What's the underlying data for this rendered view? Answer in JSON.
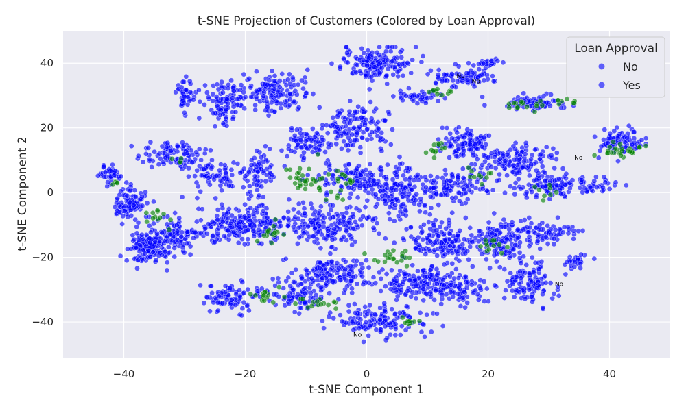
{
  "chart_data": {
    "type": "scatter",
    "title": "t-SNE Projection of Customers (Colored by Loan Approval)",
    "xlabel": "t-SNE Component 1",
    "ylabel": "t-SNE Component 2",
    "xlim": [
      -50,
      50
    ],
    "ylim": [
      -51,
      50
    ],
    "xticks": [
      -40,
      -20,
      0,
      20,
      40
    ],
    "yticks": [
      -40,
      -20,
      0,
      20,
      40
    ],
    "grid": true,
    "legend": {
      "title": "Loan Approval",
      "placement": "top-right",
      "entries": [
        {
          "label": "No",
          "color": "#0000ff"
        },
        {
          "label": "Yes",
          "color": "#0000ff"
        }
      ]
    },
    "colors": {
      "blue": "#0000ff",
      "green": "#008000",
      "background": "#eaeaf2",
      "grid": "#ffffff"
    },
    "clusters": [
      {
        "series": "blue",
        "center": [
          -42.5,
          5.5
        ],
        "spread": [
          1.8,
          2.2
        ],
        "n": 40
      },
      {
        "series": "blue",
        "center": [
          -39,
          -3
        ],
        "spread": [
          2.5,
          4.5
        ],
        "n": 90
      },
      {
        "series": "blue",
        "center": [
          -36,
          -17
        ],
        "spread": [
          3,
          4
        ],
        "n": 130
      },
      {
        "series": "blue",
        "center": [
          -32,
          -13
        ],
        "spread": [
          4,
          4
        ],
        "n": 110
      },
      {
        "series": "blue",
        "center": [
          -32,
          12
        ],
        "spread": [
          4,
          4
        ],
        "n": 90
      },
      {
        "series": "blue",
        "center": [
          -30,
          30
        ],
        "spread": [
          1.5,
          4
        ],
        "n": 40
      },
      {
        "series": "blue",
        "center": [
          -23,
          27
        ],
        "spread": [
          3,
          6
        ],
        "n": 100
      },
      {
        "series": "blue",
        "center": [
          -15,
          31
        ],
        "spread": [
          4,
          5
        ],
        "n": 130
      },
      {
        "series": "blue",
        "center": [
          -25,
          5
        ],
        "spread": [
          4,
          4
        ],
        "n": 70
      },
      {
        "series": "blue",
        "center": [
          -18,
          6
        ],
        "spread": [
          3,
          6
        ],
        "n": 70
      },
      {
        "series": "blue",
        "center": [
          -20,
          -10
        ],
        "spread": [
          6,
          5
        ],
        "n": 220
      },
      {
        "series": "blue",
        "center": [
          -22,
          -32
        ],
        "spread": [
          4,
          4
        ],
        "n": 80
      },
      {
        "series": "blue",
        "center": [
          -11,
          -32
        ],
        "spread": [
          4,
          4
        ],
        "n": 80
      },
      {
        "series": "blue",
        "center": [
          -10,
          15
        ],
        "spread": [
          3,
          4
        ],
        "n": 70
      },
      {
        "series": "blue",
        "center": [
          -2,
          20
        ],
        "spread": [
          5,
          6
        ],
        "n": 140
      },
      {
        "series": "blue",
        "center": [
          -2,
          4
        ],
        "spread": [
          5,
          4
        ],
        "n": 110
      },
      {
        "series": "blue",
        "center": [
          -6,
          -10
        ],
        "spread": [
          6,
          5
        ],
        "n": 180
      },
      {
        "series": "blue",
        "center": [
          -6,
          -25
        ],
        "spread": [
          6,
          4
        ],
        "n": 150
      },
      {
        "series": "blue",
        "center": [
          2,
          -40
        ],
        "spread": [
          7,
          4
        ],
        "n": 140
      },
      {
        "series": "blue",
        "center": [
          2,
          40
        ],
        "spread": [
          5,
          4
        ],
        "n": 160
      },
      {
        "series": "blue",
        "center": [
          9,
          30
        ],
        "spread": [
          3,
          2
        ],
        "n": 40
      },
      {
        "series": "blue",
        "center": [
          16,
          36
        ],
        "spread": [
          4,
          3
        ],
        "n": 80
      },
      {
        "series": "blue",
        "center": [
          20,
          40
        ],
        "spread": [
          1.5,
          1.2
        ],
        "n": 20
      },
      {
        "series": "blue",
        "center": [
          6,
          0
        ],
        "spread": [
          5,
          7
        ],
        "n": 160
      },
      {
        "series": "blue",
        "center": [
          12,
          -15
        ],
        "spread": [
          5,
          5
        ],
        "n": 140
      },
      {
        "series": "blue",
        "center": [
          8,
          -28
        ],
        "spread": [
          5,
          5
        ],
        "n": 120
      },
      {
        "series": "blue",
        "center": [
          17,
          15
        ],
        "spread": [
          4,
          4
        ],
        "n": 110
      },
      {
        "series": "blue",
        "center": [
          25,
          10
        ],
        "spread": [
          5,
          4
        ],
        "n": 120
      },
      {
        "series": "blue",
        "center": [
          15,
          2
        ],
        "spread": [
          5,
          4
        ],
        "n": 100
      },
      {
        "series": "blue",
        "center": [
          30,
          2
        ],
        "spread": [
          5,
          3
        ],
        "n": 100
      },
      {
        "series": "blue",
        "center": [
          22,
          -15
        ],
        "spread": [
          5,
          5
        ],
        "n": 150
      },
      {
        "series": "blue",
        "center": [
          15,
          -30
        ],
        "spread": [
          5,
          4
        ],
        "n": 100
      },
      {
        "series": "blue",
        "center": [
          27,
          -28
        ],
        "spread": [
          4,
          5
        ],
        "n": 110
      },
      {
        "series": "blue",
        "center": [
          30,
          -12
        ],
        "spread": [
          4,
          3
        ],
        "n": 60
      },
      {
        "series": "blue",
        "center": [
          27,
          28
        ],
        "spread": [
          4,
          2
        ],
        "n": 70
      },
      {
        "series": "blue",
        "center": [
          42,
          16
        ],
        "spread": [
          3,
          3
        ],
        "n": 80
      },
      {
        "series": "blue",
        "center": [
          38,
          2
        ],
        "spread": [
          3,
          2
        ],
        "n": 30
      },
      {
        "series": "blue",
        "center": [
          34,
          -21
        ],
        "spread": [
          2,
          2
        ],
        "n": 25
      },
      {
        "series": "green",
        "center": [
          -35,
          -7
        ],
        "spread": [
          2,
          2
        ],
        "n": 12
      },
      {
        "series": "green",
        "center": [
          -10,
          4
        ],
        "spread": [
          3,
          4
        ],
        "n": 30
      },
      {
        "series": "green",
        "center": [
          -4,
          4
        ],
        "spread": [
          3,
          2
        ],
        "n": 12
      },
      {
        "series": "green",
        "center": [
          -16,
          -12
        ],
        "spread": [
          2,
          3
        ],
        "n": 15
      },
      {
        "series": "green",
        "center": [
          -17,
          -32
        ],
        "spread": [
          2,
          3
        ],
        "n": 15
      },
      {
        "series": "green",
        "center": [
          -8,
          -34
        ],
        "spread": [
          3,
          1.5
        ],
        "n": 15
      },
      {
        "series": "green",
        "center": [
          4,
          -20
        ],
        "spread": [
          4,
          2
        ],
        "n": 20
      },
      {
        "series": "green",
        "center": [
          7,
          -40
        ],
        "spread": [
          2,
          2
        ],
        "n": 10
      },
      {
        "series": "green",
        "center": [
          12,
          14
        ],
        "spread": [
          2,
          2
        ],
        "n": 12
      },
      {
        "series": "green",
        "center": [
          19,
          5
        ],
        "spread": [
          2,
          3
        ],
        "n": 10
      },
      {
        "series": "green",
        "center": [
          20,
          -17
        ],
        "spread": [
          2,
          3
        ],
        "n": 12
      },
      {
        "series": "green",
        "center": [
          12,
          31
        ],
        "spread": [
          2,
          1
        ],
        "n": 10
      },
      {
        "series": "green",
        "center": [
          27,
          27
        ],
        "spread": [
          3,
          1.2
        ],
        "n": 15
      },
      {
        "series": "green",
        "center": [
          33,
          28
        ],
        "spread": [
          2,
          1
        ],
        "n": 8
      },
      {
        "series": "green",
        "center": [
          42,
          13
        ],
        "spread": [
          3,
          2
        ],
        "n": 25
      },
      {
        "series": "green",
        "center": [
          29,
          0
        ],
        "spread": [
          2,
          2
        ],
        "n": 8
      },
      {
        "series": "green",
        "center": [
          -41,
          3
        ],
        "spread": [
          1,
          1
        ],
        "n": 4
      },
      {
        "series": "green",
        "center": [
          -5,
          -1
        ],
        "spread": [
          2,
          2
        ],
        "n": 6
      },
      {
        "series": "green",
        "center": [
          -31,
          10
        ],
        "spread": [
          2,
          1
        ],
        "n": 4
      }
    ],
    "annotations": [
      {
        "text": "No",
        "x": 14.8,
        "y": 35.4
      },
      {
        "text": "No",
        "x": 17.3,
        "y": 33.8
      },
      {
        "text": "No",
        "x": 34.2,
        "y": 10.2
      },
      {
        "text": "No",
        "x": 31,
        "y": -28.9
      },
      {
        "text": "No",
        "x": -2.2,
        "y": -44.5
      }
    ]
  }
}
